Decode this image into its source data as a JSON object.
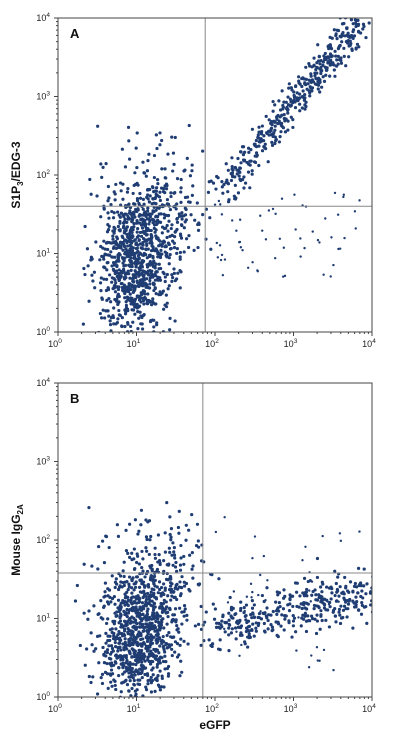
{
  "chart_data": [
    {
      "type": "scatter",
      "panel_label": "A",
      "xlabel": "",
      "ylabel": "S1P3/EDG-3",
      "ylabel_parts": [
        "S1P",
        "3",
        "/EDG-3"
      ],
      "xscale": "log",
      "yscale": "log",
      "xlim": [
        1,
        10000
      ],
      "ylim": [
        1,
        10000
      ],
      "tick_bases": [
        "10",
        "10",
        "10",
        "10",
        "10"
      ],
      "tick_exponents": [
        "0",
        "1",
        "2",
        "3",
        "4"
      ],
      "quadrant_gate": {
        "x": 75,
        "y": 40
      },
      "color": "#1f3d73",
      "grid": false,
      "populations": [
        {
          "center": [
            10,
            9
          ],
          "spread": [
            0.26,
            0.42
          ],
          "count": 650,
          "size": 1.6
        },
        {
          "center": [
            20,
            30
          ],
          "spread": [
            0.3,
            0.3
          ],
          "count": 220,
          "size": 1.6
        },
        {
          "center": [
            9,
            3
          ],
          "spread": [
            0.18,
            0.32
          ],
          "count": 180,
          "size": 1.6
        },
        {
          "center": [
            20,
            140
          ],
          "spread": [
            0.35,
            0.28
          ],
          "count": 45,
          "size": 1.6
        }
      ],
      "diagonal": {
        "start": [
          120,
          60
        ],
        "end": [
          7000,
          9000
        ],
        "count": 420,
        "jitter": 0.12,
        "size": 1.6
      },
      "scatter_noise": {
        "count": 60,
        "xrange": [
          90,
          7000
        ],
        "yrange": [
          5,
          60
        ],
        "size": 1.2
      }
    },
    {
      "type": "scatter",
      "panel_label": "B",
      "xlabel": "eGFP",
      "ylabel": "Mouse IgG2A",
      "ylabel_parts": [
        "Mouse IgG",
        "2A",
        ""
      ],
      "xscale": "log",
      "yscale": "log",
      "xlim": [
        1,
        10000
      ],
      "ylim": [
        1,
        10000
      ],
      "tick_bases": [
        "10",
        "10",
        "10",
        "10",
        "10"
      ],
      "tick_exponents": [
        "0",
        "1",
        "2",
        "3",
        "4"
      ],
      "quadrant_gate": {
        "x": 70,
        "y": 38
      },
      "color": "#1f3d73",
      "grid": false,
      "populations": [
        {
          "center": [
            11,
            7
          ],
          "spread": [
            0.26,
            0.38
          ],
          "count": 650,
          "size": 1.6
        },
        {
          "center": [
            18,
            25
          ],
          "spread": [
            0.3,
            0.28
          ],
          "count": 200,
          "size": 1.6
        },
        {
          "center": [
            9,
            2.5
          ],
          "spread": [
            0.2,
            0.3
          ],
          "count": 160,
          "size": 1.6
        },
        {
          "center": [
            18,
            90
          ],
          "spread": [
            0.35,
            0.28
          ],
          "count": 50,
          "size": 1.6
        }
      ],
      "diagonal": {
        "start": [
          90,
          7
        ],
        "end": [
          9000,
          22
        ],
        "count": 360,
        "jitter": 0.16,
        "size": 1.6
      },
      "scatter_noise": {
        "count": 45,
        "xrange": [
          90,
          7000
        ],
        "yrange": [
          2,
          200
        ],
        "size": 1.2
      }
    }
  ]
}
